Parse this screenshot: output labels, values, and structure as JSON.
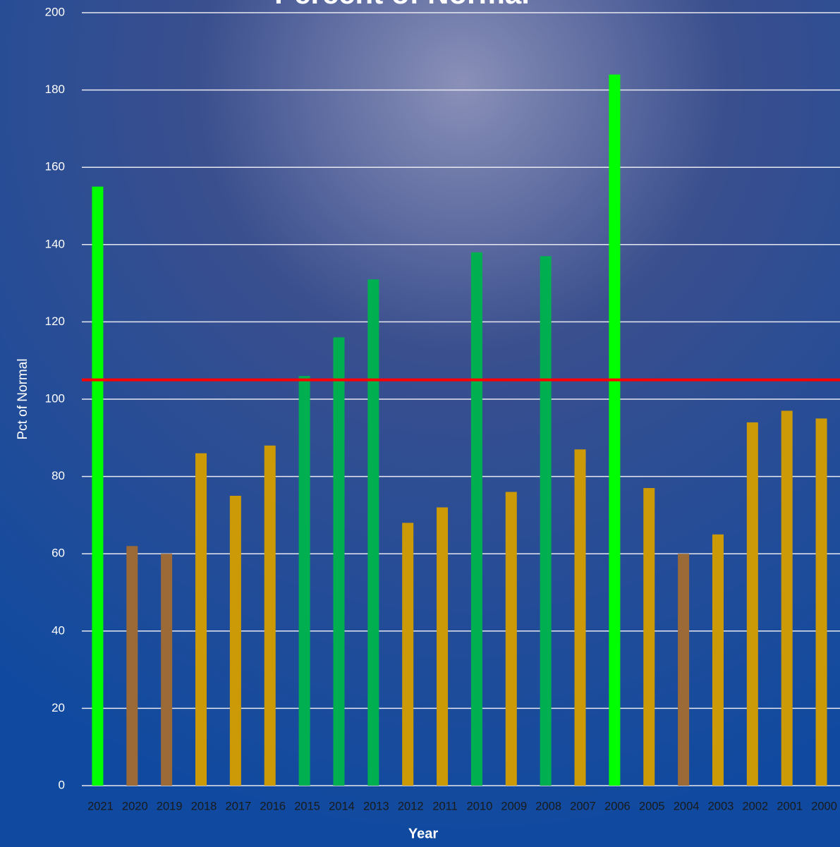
{
  "chart_data": {
    "type": "bar",
    "title": "Percent of Normal",
    "x_label": "Year",
    "y_label": "Pct of Normal",
    "categories": [
      "2021",
      "2020",
      "2019",
      "2018",
      "2017",
      "2016",
      "2015",
      "2014",
      "2013",
      "2012",
      "2011",
      "2010",
      "2009",
      "2008",
      "2007",
      "2006",
      "2005",
      "2004",
      "2003",
      "2002",
      "2001",
      "2000"
    ],
    "values": [
      155,
      62,
      60,
      86,
      75,
      88,
      106,
      116,
      131,
      68,
      72,
      138,
      76,
      137,
      87,
      184,
      77,
      60,
      65,
      94,
      97,
      95
    ],
    "colors": [
      "#00ff00",
      "#9c6a36",
      "#9c6a36",
      "#cc9a06",
      "#cc9a06",
      "#cc9a06",
      "#00b050",
      "#00b050",
      "#00b050",
      "#cc9a06",
      "#cc9a06",
      "#00b050",
      "#cc9a06",
      "#00b050",
      "#cc9a06",
      "#00ff00",
      "#cc9a06",
      "#9c6a36",
      "#cc9a06",
      "#cc9a06",
      "#cc9a06",
      "#cc9a06"
    ],
    "reference_line": {
      "value": 105,
      "color": "#ff0000"
    },
    "ylim": [
      0,
      200
    ],
    "yticks": [
      0,
      20,
      40,
      60,
      80,
      100,
      120,
      140,
      160,
      180,
      200
    ],
    "grid": true
  }
}
